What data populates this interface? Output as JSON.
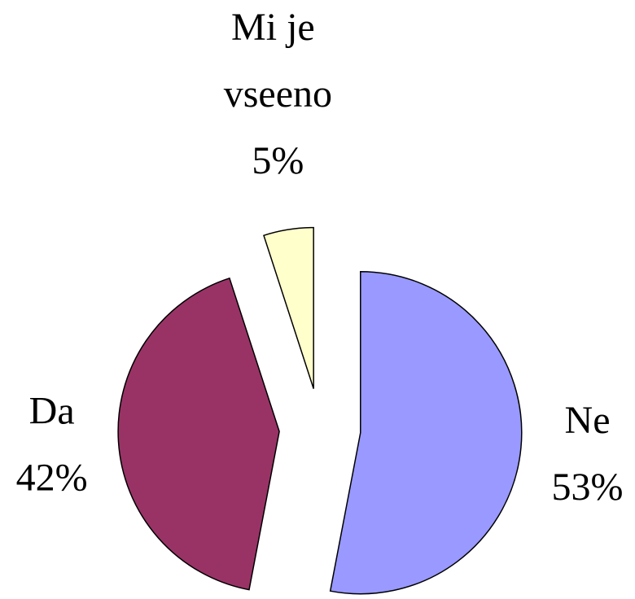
{
  "chart_data": {
    "type": "pie",
    "categories": [
      "Ne",
      "Da",
      "Mi je vseeno"
    ],
    "values": [
      53,
      42,
      5
    ],
    "value_labels": [
      "53%",
      "42%",
      "5%"
    ],
    "colors": [
      "#9999ff",
      "#993366",
      "#ffffcc"
    ],
    "exploded": true
  }
}
